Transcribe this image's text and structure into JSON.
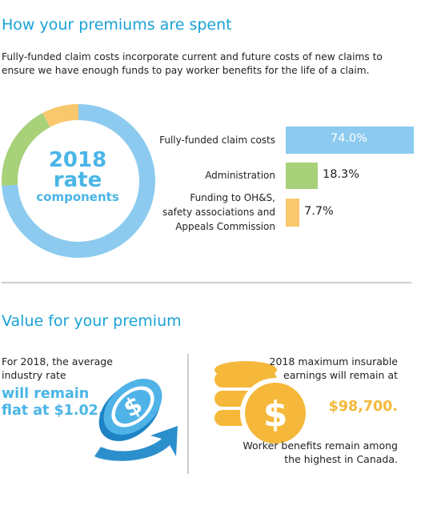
{
  "section1": {
    "title": "How your premiums are spent",
    "intro": "Fully-funded claim costs incorporate current and future costs of new claims to ensure we have enough funds to pay worker benefits for the life of a claim.",
    "donut_label": [
      "2018",
      "rate",
      "components"
    ]
  },
  "chart_data": {
    "type": "bar",
    "categories": [
      "Fully-funded claim costs",
      "Administration",
      "Funding to OH&S, safety associations and Appeals Commission"
    ],
    "category_lines": [
      [
        "Fully-funded claim costs"
      ],
      [
        "Administration"
      ],
      [
        "Funding to OH&S,",
        "safety associations and",
        "Appeals Commission"
      ]
    ],
    "values": [
      74.0,
      18.3,
      7.7
    ],
    "value_labels": [
      "74.0%",
      "18.3%",
      "7.7%"
    ],
    "colors": [
      "#8ccbef",
      "#a8d17a",
      "#f9c76d"
    ],
    "unit": "%"
  },
  "section2": {
    "title": "Value for your premium",
    "left_text": "For 2018, the average industry rate",
    "left_big": "will remain flat at $1.02.",
    "right_text1": "2018 maximum insurable earnings will remain at",
    "right_big": "$98,700.",
    "right_text2": "Worker benefits remain among the highest in Canada."
  },
  "icons": {
    "left": "spinning-dollar-coin-arrow-icon",
    "right": "coin-stack-dollar-icon"
  },
  "colors": {
    "accent_blue": "#1aa2d6",
    "light_blue": "#8ccbef",
    "green": "#a8d17a",
    "orange": "#f9c76d",
    "gold": "#f5b83a"
  }
}
